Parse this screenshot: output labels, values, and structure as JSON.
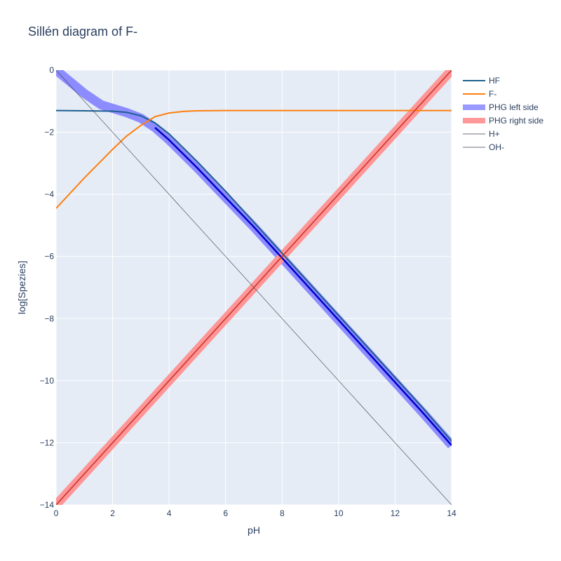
{
  "chart_data": {
    "type": "line",
    "title": "Sillén diagram of F-",
    "xlabel": "pH",
    "ylabel": "log[Spezies]",
    "xlim": [
      0,
      14
    ],
    "ylim": [
      -14,
      0
    ],
    "xticks": [
      0,
      2,
      4,
      6,
      8,
      10,
      12,
      14
    ],
    "yticks": [
      0,
      -2,
      -4,
      -6,
      -8,
      -10,
      -12,
      -14
    ],
    "grid": true,
    "legend_position": "right",
    "series": [
      {
        "name": "PHG left side",
        "color": "#8888ff",
        "style": "band",
        "x": [
          0,
          1,
          1.6,
          2,
          2.5,
          3,
          3.5,
          4,
          5,
          6,
          7,
          8,
          9,
          10,
          11,
          12,
          13,
          14
        ],
        "y": [
          0,
          -0.75,
          -1.12,
          -1.23,
          -1.37,
          -1.55,
          -1.85,
          -2.25,
          -3.15,
          -4.1,
          -5.05,
          -6.05,
          -7.05,
          -8.05,
          -9.05,
          -10.05,
          -11.05,
          -12.08
        ]
      },
      {
        "name": "PHG right side",
        "color": "#ff8888",
        "style": "band",
        "x": [
          0,
          14
        ],
        "y": [
          -14,
          0
        ]
      },
      {
        "name": "HF",
        "color": "#1f5f8f",
        "style": "line",
        "x": [
          0,
          1,
          2,
          2.5,
          3,
          3.5,
          4,
          4.5,
          5,
          6,
          7,
          8,
          9,
          10,
          11,
          12,
          13,
          14
        ],
        "y": [
          -1.3,
          -1.31,
          -1.32,
          -1.36,
          -1.47,
          -1.7,
          -2.05,
          -2.5,
          -2.95,
          -3.9,
          -4.9,
          -5.9,
          -6.9,
          -7.9,
          -8.9,
          -9.9,
          -10.9,
          -11.95
        ]
      },
      {
        "name": "F-",
        "color": "#ff7f0e",
        "style": "line",
        "x": [
          0,
          1,
          2,
          2.5,
          3,
          3.5,
          4,
          4.5,
          5,
          6,
          8,
          10,
          12,
          14
        ],
        "y": [
          -4.45,
          -3.47,
          -2.55,
          -2.12,
          -1.78,
          -1.5,
          -1.38,
          -1.33,
          -1.31,
          -1.3,
          -1.3,
          -1.3,
          -1.3,
          -1.3
        ]
      },
      {
        "name": "H+",
        "color": "#3a3f4a",
        "style": "thin",
        "x": [
          0,
          14
        ],
        "y": [
          0,
          -14
        ]
      },
      {
        "name": "OH-",
        "color": "#3a3f4a",
        "style": "thin",
        "x": [
          0,
          14
        ],
        "y": [
          -14,
          0
        ]
      }
    ]
  },
  "legend": {
    "items": [
      {
        "label": "HF",
        "color": "#1f5f8f",
        "style": "line"
      },
      {
        "label": "F-",
        "color": "#ff7f0e",
        "style": "line"
      },
      {
        "label": "PHG left side",
        "color": "#9999ff",
        "style": "band"
      },
      {
        "label": "PHG right side",
        "color": "#ff9999",
        "style": "band"
      },
      {
        "label": "H+",
        "color": "#3a3f4a",
        "style": "thin"
      },
      {
        "label": "OH-",
        "color": "#3a3f4a",
        "style": "thin"
      }
    ]
  },
  "colors": {
    "plot_bg": "#e5ecf6",
    "grid": "#ffffff",
    "text": "#2a3f5f",
    "dark_band_core": "#0000cc",
    "red_band_core": "#cc3333"
  }
}
